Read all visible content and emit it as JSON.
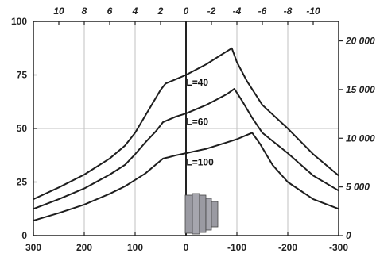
{
  "chart_data": {
    "type": "line",
    "title": "",
    "xlabel": "",
    "ylabel": "",
    "x_bottom": {
      "range": [
        300,
        -300
      ],
      "ticks": [
        300,
        200,
        100,
        0,
        -100,
        -200,
        -300
      ],
      "tick_labels": [
        "300",
        "200",
        "100",
        "0",
        "-100",
        "-200",
        "-300"
      ]
    },
    "x_top": {
      "range": [
        12,
        -12
      ],
      "ticks": [
        10,
        8,
        6,
        4,
        2,
        0,
        -2,
        -4,
        -6,
        -8,
        -10
      ],
      "tick_labels": [
        "10",
        "8",
        "6",
        "4",
        "2",
        "0",
        "-2",
        "-4",
        "-6",
        "-8",
        "-10"
      ]
    },
    "y_left": {
      "range": [
        0,
        100
      ],
      "ticks": [
        0,
        25,
        50,
        75,
        100
      ],
      "tick_labels": [
        "0",
        "25",
        "50",
        "75",
        "100"
      ]
    },
    "y_right": {
      "range": [
        0,
        22000
      ],
      "ticks": [
        0,
        5000,
        10000,
        15000,
        20000
      ],
      "tick_labels": [
        "0",
        "5 000",
        "10 000",
        "15 000",
        "20 000"
      ]
    },
    "grid": true,
    "series": [
      {
        "name": "L=40",
        "points": [
          [
            300,
            17
          ],
          [
            250,
            22.5
          ],
          [
            200,
            28.5
          ],
          [
            150,
            36
          ],
          [
            120,
            42
          ],
          [
            100,
            48
          ],
          [
            80,
            56
          ],
          [
            60,
            64
          ],
          [
            50,
            68
          ],
          [
            40,
            71
          ],
          [
            20,
            73
          ],
          [
            0,
            75
          ],
          [
            -20,
            77.5
          ],
          [
            -40,
            80
          ],
          [
            -60,
            83
          ],
          [
            -80,
            86
          ],
          [
            -90,
            87.5
          ],
          [
            -100,
            81
          ],
          [
            -120,
            72
          ],
          [
            -150,
            61
          ],
          [
            -200,
            50
          ],
          [
            -250,
            38
          ],
          [
            -300,
            28
          ]
        ]
      },
      {
        "name": "L=60",
        "points": [
          [
            300,
            12.5
          ],
          [
            250,
            17
          ],
          [
            200,
            22
          ],
          [
            150,
            28.5
          ],
          [
            120,
            33
          ],
          [
            100,
            38
          ],
          [
            80,
            43.5
          ],
          [
            60,
            48.5
          ],
          [
            45,
            53
          ],
          [
            35,
            54
          ],
          [
            20,
            55.5
          ],
          [
            0,
            57
          ],
          [
            -20,
            59
          ],
          [
            -40,
            61
          ],
          [
            -60,
            63.5
          ],
          [
            -80,
            66
          ],
          [
            -95,
            68.5
          ],
          [
            -110,
            63
          ],
          [
            -130,
            55
          ],
          [
            -150,
            48
          ],
          [
            -200,
            38.5
          ],
          [
            -250,
            28
          ],
          [
            -300,
            21
          ]
        ]
      },
      {
        "name": "L=100",
        "points": [
          [
            300,
            7
          ],
          [
            250,
            10.5
          ],
          [
            200,
            14.5
          ],
          [
            150,
            19.5
          ],
          [
            120,
            23
          ],
          [
            100,
            26
          ],
          [
            80,
            29
          ],
          [
            60,
            33
          ],
          [
            45,
            36
          ],
          [
            35,
            36.5
          ],
          [
            20,
            37.5
          ],
          [
            0,
            38.5
          ],
          [
            -20,
            39.5
          ],
          [
            -40,
            40.5
          ],
          [
            -60,
            42
          ],
          [
            -80,
            43.5
          ],
          [
            -100,
            45
          ],
          [
            -120,
            47
          ],
          [
            -130,
            48
          ],
          [
            -145,
            43
          ],
          [
            -170,
            33
          ],
          [
            -200,
            25
          ],
          [
            -250,
            17
          ],
          [
            -300,
            12.5
          ]
        ]
      }
    ]
  }
}
